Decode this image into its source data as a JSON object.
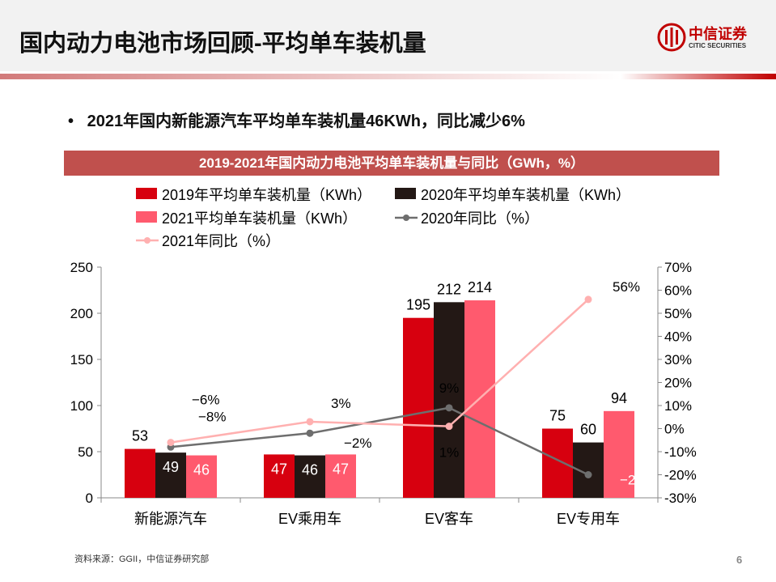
{
  "header": {
    "title": "国内动力电池市场回顾-平均单车装机量",
    "logo_cn": "中信证券",
    "logo_en": "CITIC SECURITIES"
  },
  "bullet": "2021年国内新能源汽车平均单车装机量46KWh，同比减少6%",
  "chart_header": "2019-2021年国内动力电池平均单车装机量与同比（GWh，%）",
  "chart_data": {
    "type": "bar+line",
    "categories": [
      "新能源汽车",
      "EV乘用车",
      "EV客车",
      "EV专用车"
    ],
    "series": [
      {
        "name": "2019年平均单车装机量（KWh）",
        "type": "bar",
        "axis": "left",
        "color": "#d7000f",
        "values": [
          53,
          47,
          195,
          75
        ],
        "labels": [
          "53",
          "47",
          "195",
          "75"
        ]
      },
      {
        "name": "2020年平均单车装机量（KWh）",
        "type": "bar",
        "axis": "left",
        "color": "#231815",
        "values": [
          49,
          46,
          212,
          60
        ],
        "labels": [
          "49",
          "46",
          "212",
          "60"
        ]
      },
      {
        "name": "2021平均单车装机量（KWh）",
        "type": "bar",
        "axis": "left",
        "color": "#ff5a6e",
        "values": [
          46,
          47,
          214,
          94
        ],
        "labels": [
          "46",
          "47",
          "214",
          "94"
        ]
      },
      {
        "name": "2020年同比（%）",
        "type": "line",
        "axis": "right",
        "color": "#6e6e6e",
        "values": [
          -8,
          -2,
          9,
          -20
        ],
        "labels": [
          "−8%",
          "−2%",
          "9%",
          "−20%"
        ]
      },
      {
        "name": "2021年同比（%）",
        "type": "line",
        "axis": "right",
        "color": "#ffb0b0",
        "values": [
          -6,
          3,
          1,
          56
        ],
        "labels": [
          "−6%",
          "3%",
          "1%",
          "56%"
        ]
      }
    ],
    "ylim_left": [
      0,
      250
    ],
    "yticks_left": [
      "0",
      "50",
      "100",
      "150",
      "200",
      "250"
    ],
    "ylim_right": [
      -30,
      70
    ],
    "yticks_right": [
      "-30%",
      "-20%",
      "-10%",
      "0%",
      "10%",
      "20%",
      "30%",
      "40%",
      "50%",
      "60%",
      "70%"
    ],
    "legend": "top"
  },
  "footer": {
    "source": "资料来源：GGII，中信证券研究部",
    "page": "6"
  }
}
